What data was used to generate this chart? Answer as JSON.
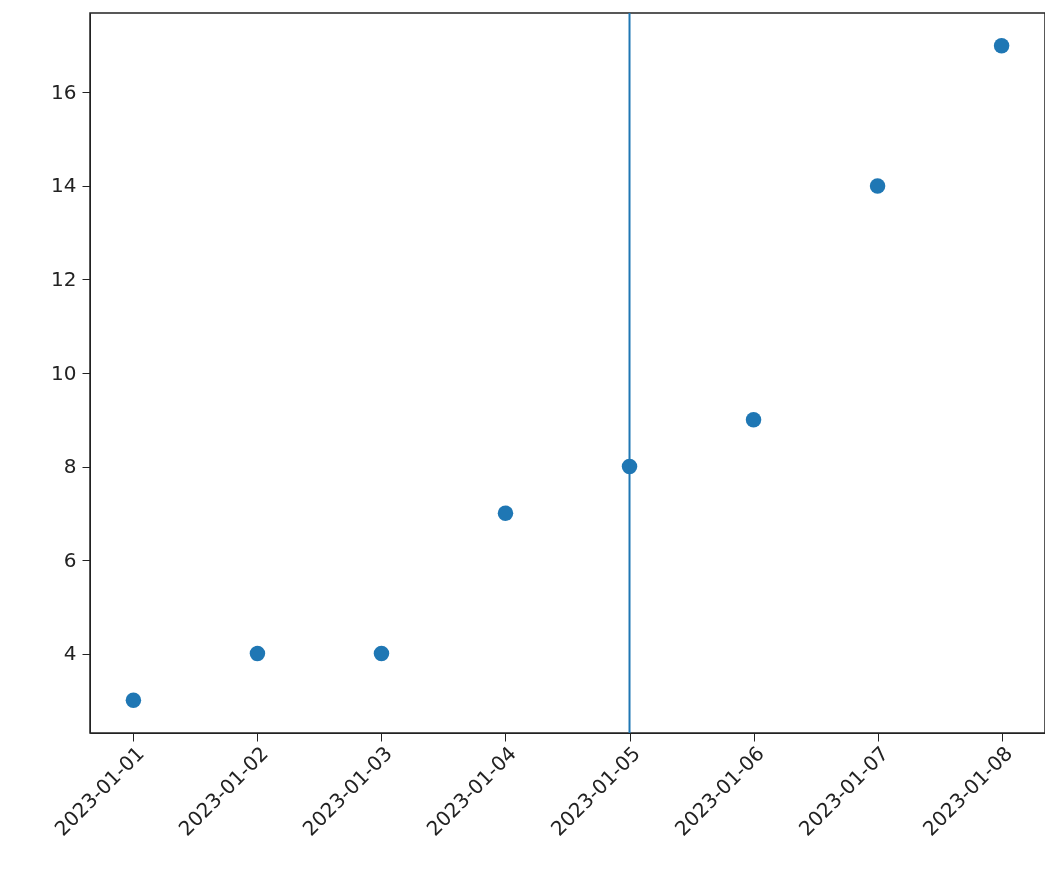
{
  "chart_data": {
    "type": "scatter",
    "x": [
      "2023-01-01",
      "2023-01-02",
      "2023-01-03",
      "2023-01-04",
      "2023-01-05",
      "2023-01-06",
      "2023-01-07",
      "2023-01-08"
    ],
    "series": [
      {
        "color": "#1f77b4",
        "values": [
          3,
          4,
          4,
          7,
          8,
          9,
          14,
          17
        ]
      }
    ],
    "xlim": [
      "2022-12-31T15:36",
      "2023-01-08T08:24"
    ],
    "xticks": [
      "2023-01-01",
      "2023-01-02",
      "2023-01-03",
      "2023-01-04",
      "2023-01-05",
      "2023-01-06",
      "2023-01-07",
      "2023-01-08"
    ],
    "ylim": [
      2.3,
      17.7
    ],
    "yticks": [
      4,
      6,
      8,
      10,
      12,
      14,
      16
    ],
    "ref_lines": [
      {
        "axis": "x",
        "value": "2023-01-05",
        "color": "#1f77b4"
      }
    ],
    "marker": "circle",
    "grid": false
  }
}
